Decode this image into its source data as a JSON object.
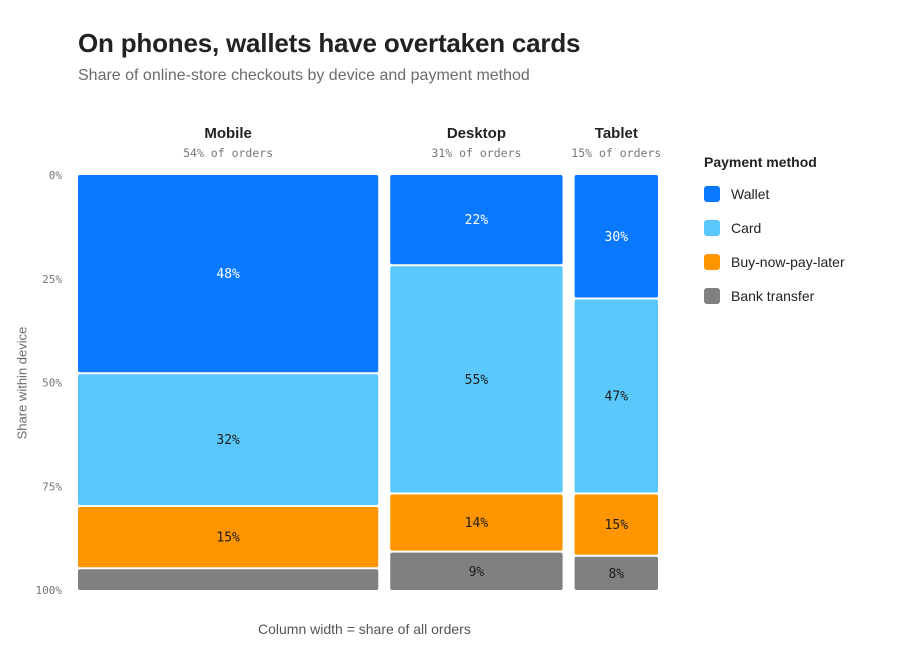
{
  "title": "On phones, wallets have overtaken cards",
  "subtitle": "Share of online-store checkouts by device and payment method",
  "footnote": "Column width = share of all orders",
  "chart_data": {
    "type": "mosaic",
    "ylabel": "Share within device",
    "y_ticks": [
      "0%",
      "25%",
      "50%",
      "75%",
      "100%"
    ],
    "ylim": [
      0,
      100
    ],
    "columns": [
      {
        "name": "Mobile",
        "share_label": "54% of orders",
        "share": 54,
        "segments": [
          48,
          32,
          15,
          5
        ],
        "labels": [
          "48%",
          "32%",
          "15%",
          ""
        ]
      },
      {
        "name": "Desktop",
        "share_label": "31% of orders",
        "share": 31,
        "segments": [
          22,
          55,
          14,
          9
        ],
        "labels": [
          "22%",
          "55%",
          "14%",
          "9%"
        ]
      },
      {
        "name": "Tablet",
        "share_label": "15% of orders",
        "share": 15,
        "segments": [
          30,
          47,
          15,
          8
        ],
        "labels": [
          "30%",
          "47%",
          "15%",
          "8%"
        ]
      }
    ],
    "series": [
      {
        "name": "Wallet",
        "color": "#0a78ff"
      },
      {
        "name": "Card",
        "color": "#5ac8fa"
      },
      {
        "name": "Buy-now-pay-later",
        "color": "#ff9500"
      },
      {
        "name": "Bank transfer",
        "color": "#808080"
      }
    ],
    "legend_title": "Payment method",
    "legend_position": "right"
  }
}
